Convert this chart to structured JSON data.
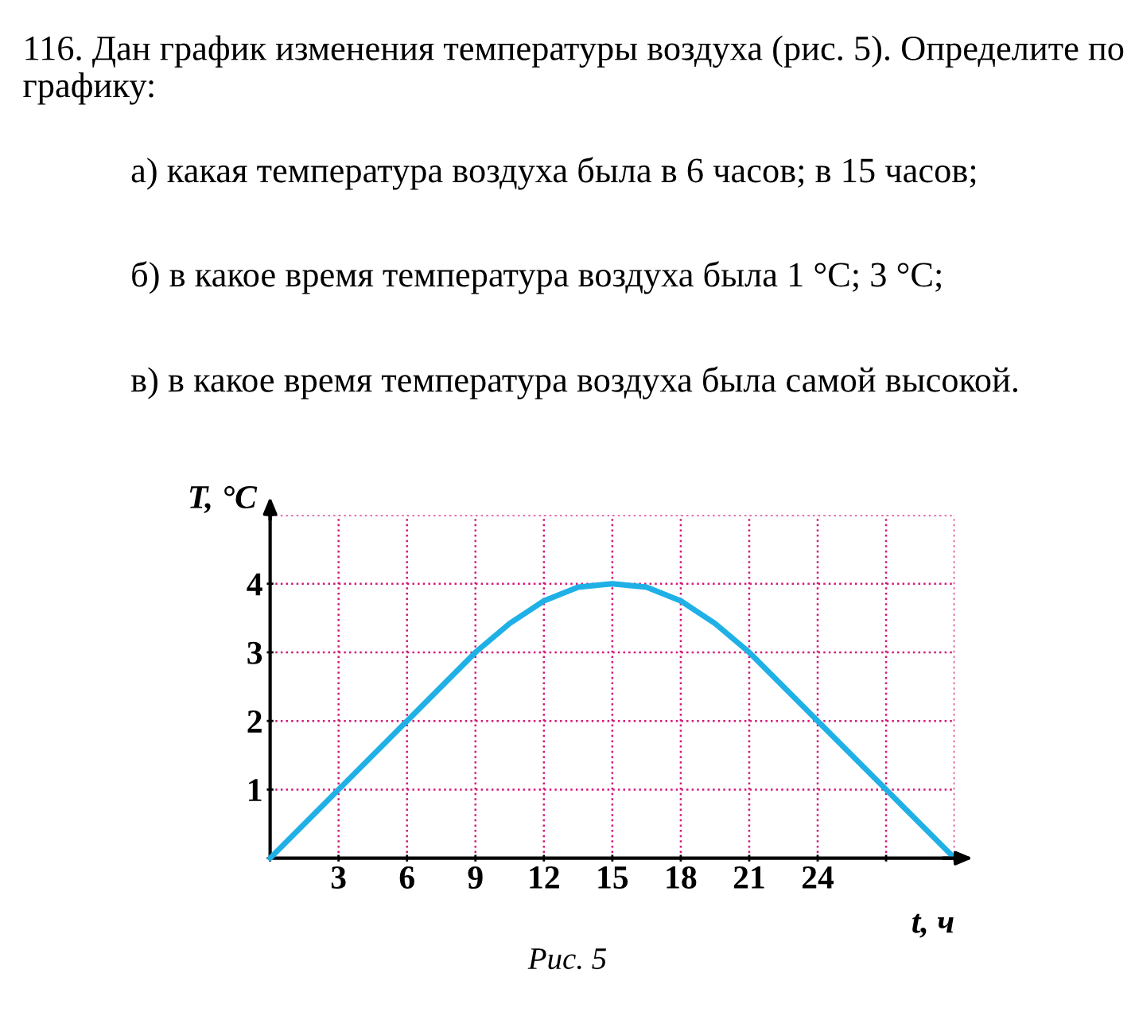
{
  "chart_data": {
    "type": "line",
    "title": "116. Дан график изменения температуры воздуха (рис. 5). Определите по графику:",
    "annotations": [
      "а) какая температура воздуха была в 6 часов; в 15 часов;",
      "б) в какое время температура воздуха была 1 °C; 3 °C;",
      "в) в какое время температура воздуха была самой высокой.",
      "Рис. 5"
    ],
    "xlabel": "t, ч",
    "ylabel": "T, °C",
    "series": [
      {
        "color": "#1fb0e6",
        "x": [
          0,
          3,
          6,
          9,
          10.5,
          12,
          13.5,
          15,
          16.5,
          18,
          19.5,
          21,
          24,
          27,
          30
        ],
        "values": [
          0,
          1,
          2,
          3,
          3.42,
          3.75,
          3.95,
          4,
          3.95,
          3.75,
          3.42,
          3,
          2,
          1,
          0
        ]
      }
    ],
    "xlim": [
      0,
      30
    ],
    "ylim": [
      0,
      5
    ],
    "xticks": [
      {
        "value": 0,
        "label": null
      },
      3,
      6,
      9,
      12,
      15,
      18,
      21,
      24,
      {
        "value": 27,
        "label": null
      },
      {
        "value": 30,
        "label": null
      }
    ],
    "yticks": [
      {
        "value": 0,
        "label": null
      },
      1,
      2,
      3,
      4,
      {
        "value": 5,
        "label": null
      }
    ],
    "grid": true,
    "marker": "none",
    "line_style": "solid",
    "legend": false
  }
}
